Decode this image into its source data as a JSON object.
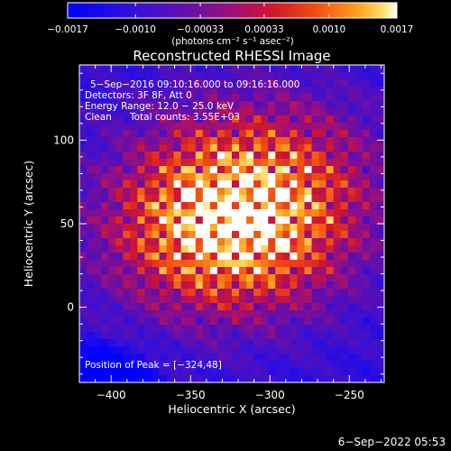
{
  "chart_data": {
    "type": "heatmap",
    "title": "Reconstructed RHESSI Image",
    "xlabel": "Heliocentric X (arcsec)",
    "ylabel": "Heliocentric Y (arcsec)",
    "xlim": [
      -420,
      -228
    ],
    "ylim": [
      -45,
      145
    ],
    "x_ticks": [
      -400,
      -350,
      -300,
      -250
    ],
    "y_ticks": [
      0,
      50,
      100
    ],
    "x_tick_labels": [
      "−400",
      "−350",
      "−300",
      "−250"
    ],
    "y_tick_labels": [
      "0",
      "50",
      "100"
    ],
    "colorbar": {
      "range": [
        -0.0017,
        0.0017
      ],
      "ticks": [
        -0.0017,
        -0.001,
        -0.00033,
        0.00033,
        0.001,
        0.0017
      ],
      "tick_labels": [
        "−0.0017",
        "−0.0010",
        "−0.00033",
        "0.00033",
        "0.0010",
        "0.0017"
      ],
      "unit_label": "(photons cm⁻² s⁻¹ asec⁻²)"
    },
    "annotations": {
      "time_range": "5−Sep−2016 09:10:16.000 to 09:16:16.000",
      "detectors": "Detectors: 3F 8F, Att 0",
      "energy_range": "Energy Range: 12.0 − 25.0 keV",
      "method": "Clean",
      "total_counts": "Total counts: 3.55E+03",
      "peak_position": "Position of Peak = [−324,48]"
    },
    "peak": {
      "x": -324,
      "y": 48,
      "value": 0.0017
    },
    "grid": false
  },
  "footer": {
    "timestamp": "6−Sep−2022 05:53"
  }
}
